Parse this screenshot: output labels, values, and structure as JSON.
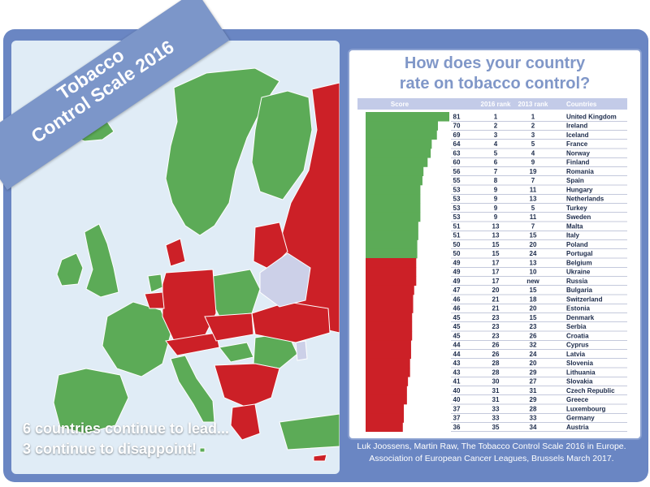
{
  "banner": {
    "line1": "Tobacco",
    "line2": "Control Scale 2016"
  },
  "caption": {
    "line1": "6 countries continue to lead...",
    "line2": "3 continue to disappoint!"
  },
  "table_title": {
    "line1": "How does your country",
    "line2": "rate on tobacco control?"
  },
  "source": {
    "line1": "Luk Joossens, Martin Raw, The Tobacco Control Scale 2016 in Europe.",
    "line2": "Association of European Cancer Leagues, Brussels March 2017."
  },
  "colors": {
    "good": "#5cab57",
    "bad": "#cc2027",
    "neutral": "#ccd0e8",
    "header": "#c3cbe8",
    "frame": "#6a86c3",
    "title": "#8097c8"
  },
  "chart_data": {
    "type": "bar",
    "orientation": "horizontal",
    "columns": [
      "Score",
      "2016 rank",
      "2013 rank",
      "Countries"
    ],
    "xlim": [
      0,
      81
    ],
    "rows": [
      {
        "score": 81,
        "rank2016": "1",
        "rank2013": "1",
        "country": "United Kingdom",
        "group": "good"
      },
      {
        "score": 70,
        "rank2016": "2",
        "rank2013": "2",
        "country": "Ireland",
        "group": "good"
      },
      {
        "score": 69,
        "rank2016": "3",
        "rank2013": "3",
        "country": "Iceland",
        "group": "good"
      },
      {
        "score": 64,
        "rank2016": "4",
        "rank2013": "5",
        "country": "France",
        "group": "good"
      },
      {
        "score": 63,
        "rank2016": "5",
        "rank2013": "4",
        "country": "Norway",
        "group": "good"
      },
      {
        "score": 60,
        "rank2016": "6",
        "rank2013": "9",
        "country": "Finland",
        "group": "good"
      },
      {
        "score": 56,
        "rank2016": "7",
        "rank2013": "19",
        "country": "Romania",
        "group": "good"
      },
      {
        "score": 55,
        "rank2016": "8",
        "rank2013": "7",
        "country": "Spain",
        "group": "good"
      },
      {
        "score": 53,
        "rank2016": "9",
        "rank2013": "11",
        "country": "Hungary",
        "group": "good"
      },
      {
        "score": 53,
        "rank2016": "9",
        "rank2013": "13",
        "country": "Netherlands",
        "group": "good"
      },
      {
        "score": 53,
        "rank2016": "9",
        "rank2013": "5",
        "country": "Turkey",
        "group": "good"
      },
      {
        "score": 53,
        "rank2016": "9",
        "rank2013": "11",
        "country": "Sweden",
        "group": "good"
      },
      {
        "score": 51,
        "rank2016": "13",
        "rank2013": "7",
        "country": "Malta",
        "group": "good"
      },
      {
        "score": 51,
        "rank2016": "13",
        "rank2013": "15",
        "country": "Italy",
        "group": "good"
      },
      {
        "score": 50,
        "rank2016": "15",
        "rank2013": "20",
        "country": "Poland",
        "group": "good"
      },
      {
        "score": 50,
        "rank2016": "15",
        "rank2013": "24",
        "country": "Portugal",
        "group": "good"
      },
      {
        "score": 49,
        "rank2016": "17",
        "rank2013": "13",
        "country": "Belgium",
        "group": "bad"
      },
      {
        "score": 49,
        "rank2016": "17",
        "rank2013": "10",
        "country": "Ukraine",
        "group": "bad"
      },
      {
        "score": 49,
        "rank2016": "17",
        "rank2013": "new",
        "country": "Russia",
        "group": "bad"
      },
      {
        "score": 47,
        "rank2016": "20",
        "rank2013": "15",
        "country": "Bulgaria",
        "group": "bad"
      },
      {
        "score": 46,
        "rank2016": "21",
        "rank2013": "18",
        "country": "Switzerland",
        "group": "bad"
      },
      {
        "score": 46,
        "rank2016": "21",
        "rank2013": "20",
        "country": "Estonia",
        "group": "bad"
      },
      {
        "score": 45,
        "rank2016": "23",
        "rank2013": "15",
        "country": "Denmark",
        "group": "bad"
      },
      {
        "score": 45,
        "rank2016": "23",
        "rank2013": "23",
        "country": "Serbia",
        "group": "bad"
      },
      {
        "score": 45,
        "rank2016": "23",
        "rank2013": "26",
        "country": "Croatia",
        "group": "bad"
      },
      {
        "score": 44,
        "rank2016": "26",
        "rank2013": "32",
        "country": "Cyprus",
        "group": "bad"
      },
      {
        "score": 44,
        "rank2016": "26",
        "rank2013": "24",
        "country": "Latvia",
        "group": "bad"
      },
      {
        "score": 43,
        "rank2016": "28",
        "rank2013": "20",
        "country": "Slovenia",
        "group": "bad"
      },
      {
        "score": 43,
        "rank2016": "28",
        "rank2013": "29",
        "country": "Lithuania",
        "group": "bad"
      },
      {
        "score": 41,
        "rank2016": "30",
        "rank2013": "27",
        "country": "Slovakia",
        "group": "bad"
      },
      {
        "score": 40,
        "rank2016": "31",
        "rank2013": "31",
        "country": "Czech Republic",
        "group": "bad"
      },
      {
        "score": 40,
        "rank2016": "31",
        "rank2013": "29",
        "country": "Greece",
        "group": "bad"
      },
      {
        "score": 37,
        "rank2016": "33",
        "rank2013": "28",
        "country": "Luxembourg",
        "group": "bad"
      },
      {
        "score": 37,
        "rank2016": "33",
        "rank2013": "33",
        "country": "Germany",
        "group": "bad"
      },
      {
        "score": 36,
        "rank2016": "35",
        "rank2013": "34",
        "country": "Austria",
        "group": "bad"
      }
    ]
  }
}
